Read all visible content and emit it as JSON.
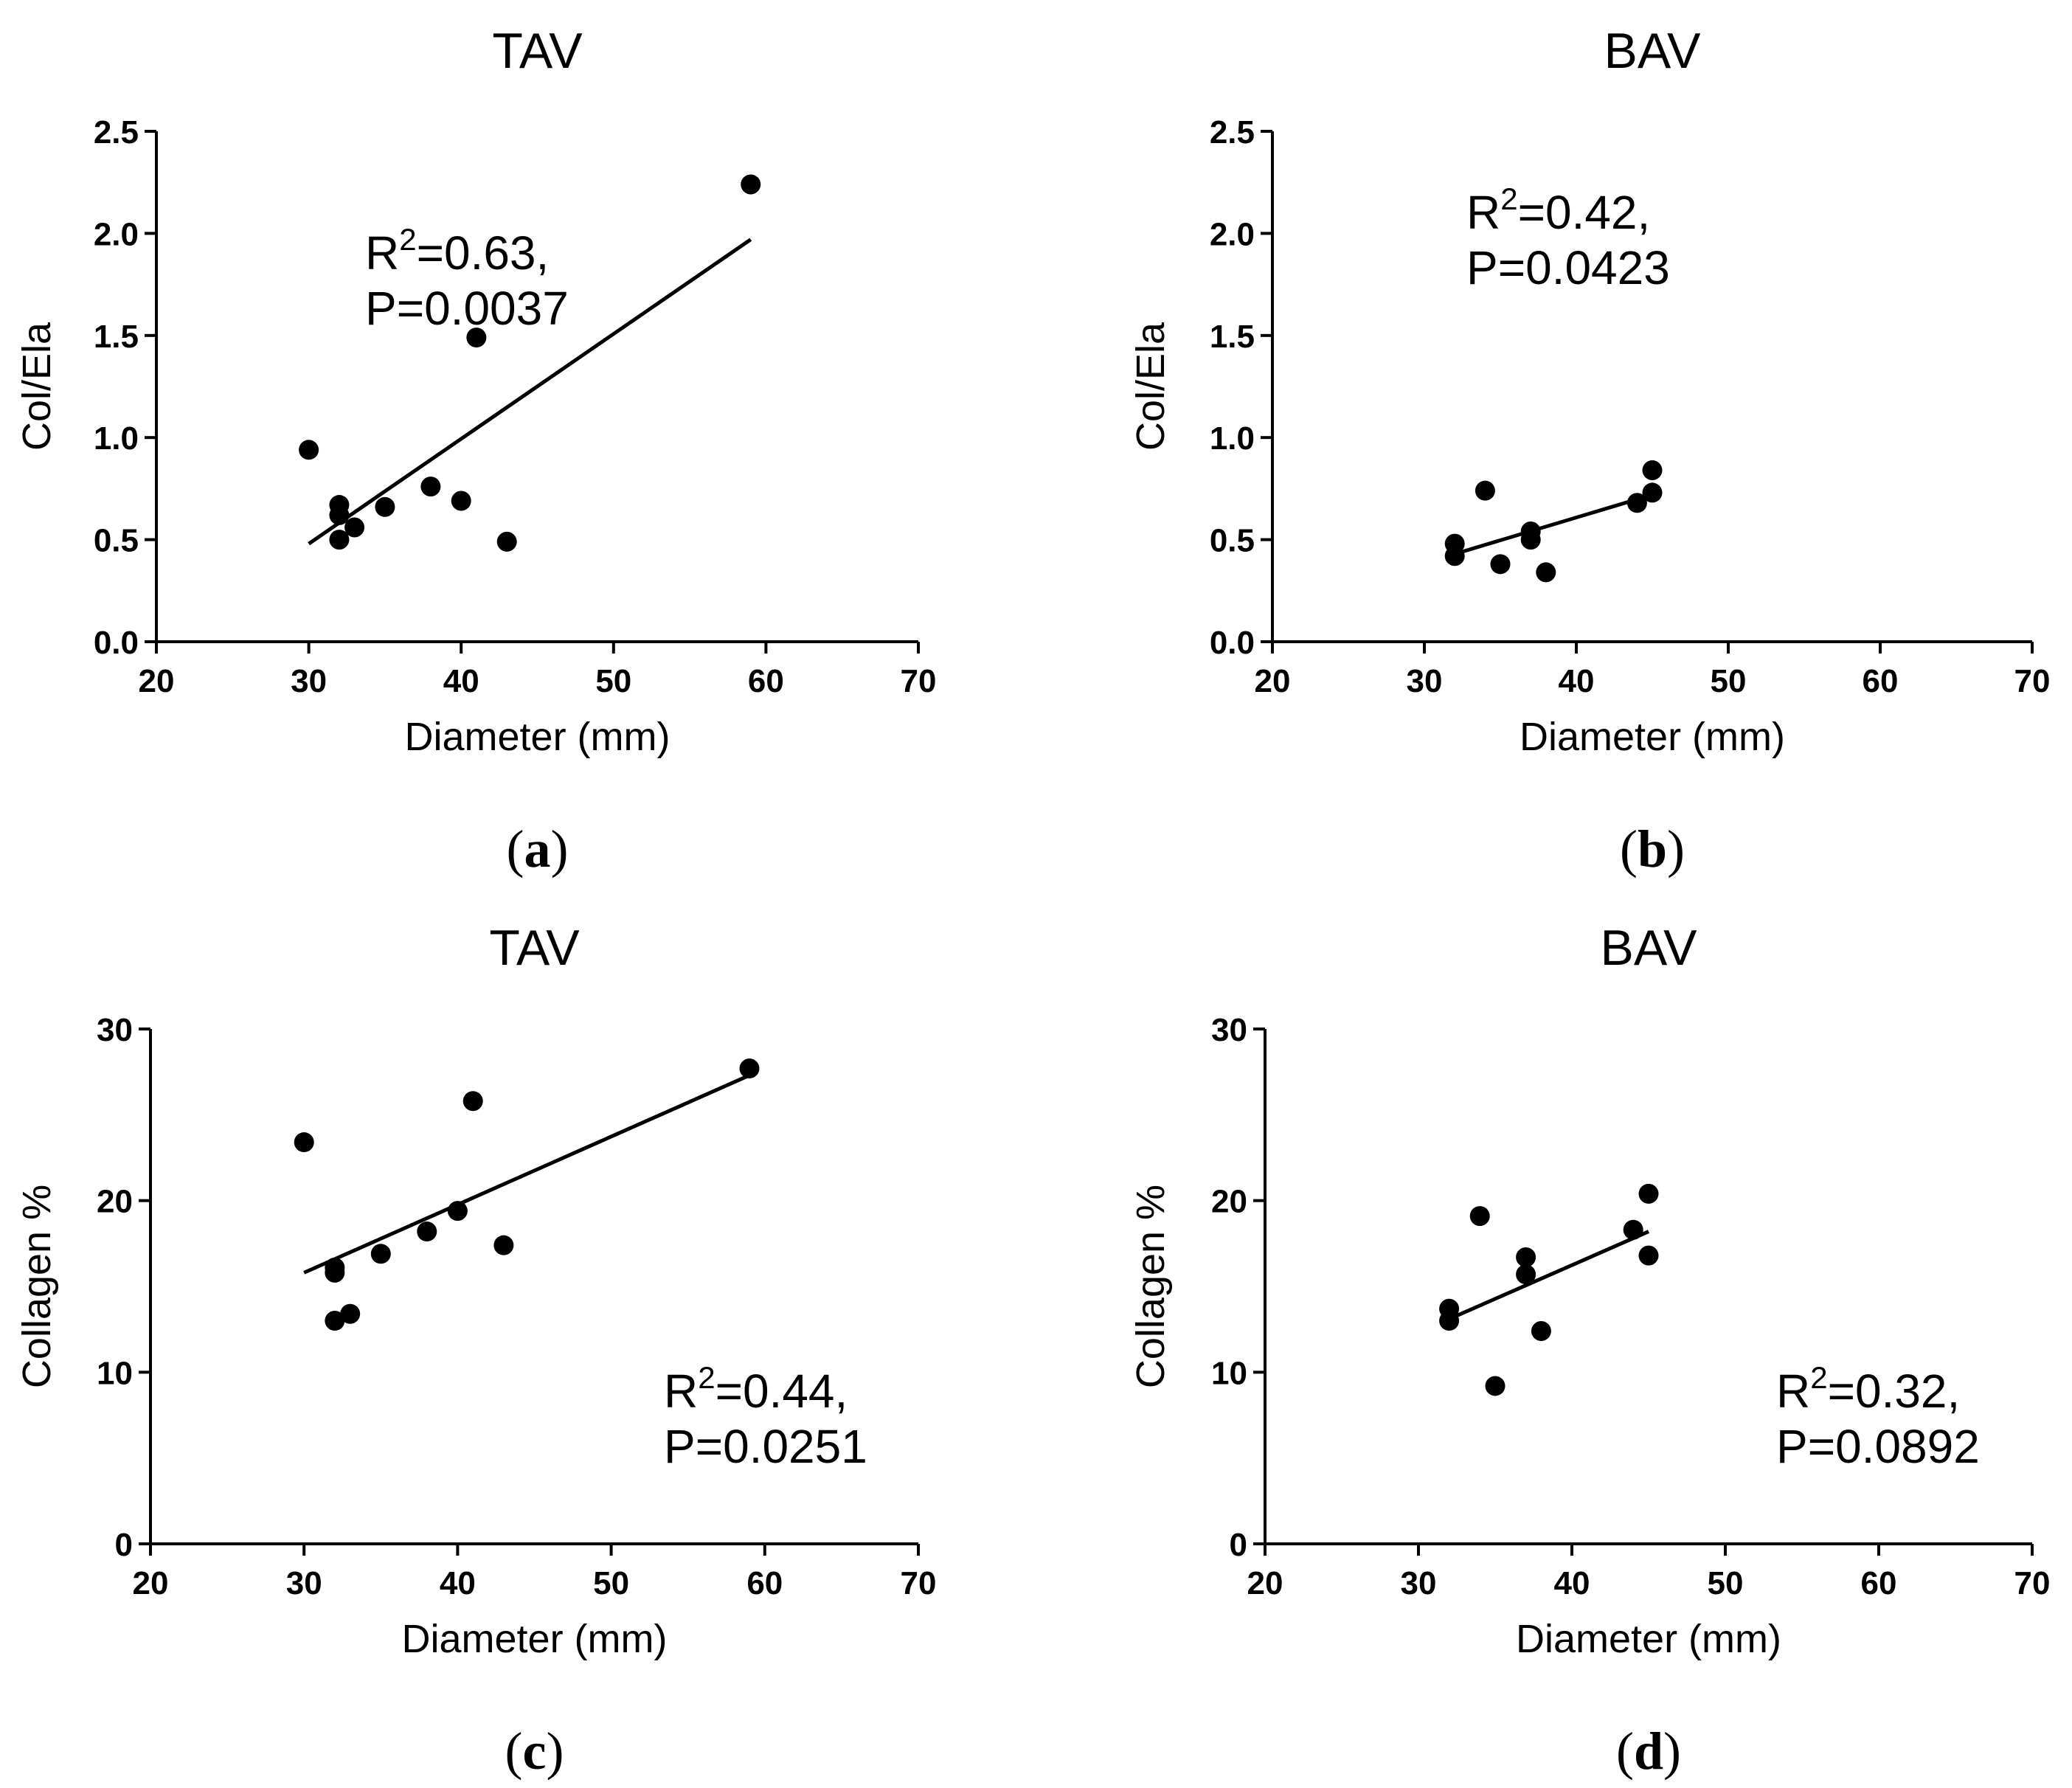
{
  "figure": {
    "background": "#ffffff",
    "ink": "#000000"
  },
  "chart_data": [
    {
      "id": "a",
      "type": "scatter",
      "panel_label": "a",
      "title": "TAV",
      "xlabel": "Diameter (mm)",
      "ylabel": "Col/Ela",
      "xlim": [
        20,
        70
      ],
      "ylim": [
        0,
        2.5
      ],
      "xticks": [
        20,
        30,
        40,
        50,
        60,
        70
      ],
      "yticks": [
        0.0,
        0.5,
        1.0,
        1.5,
        2.0,
        2.5
      ],
      "xtick_labels": [
        "20",
        "30",
        "40",
        "50",
        "60",
        "70"
      ],
      "ytick_labels": [
        "0.0",
        "0.5",
        "1.0",
        "1.5",
        "2.0",
        "2.5"
      ],
      "points": [
        {
          "x": 30,
          "y": 0.94
        },
        {
          "x": 32,
          "y": 0.67
        },
        {
          "x": 32,
          "y": 0.62
        },
        {
          "x": 32,
          "y": 0.5
        },
        {
          "x": 33,
          "y": 0.56
        },
        {
          "x": 35,
          "y": 0.66
        },
        {
          "x": 38,
          "y": 0.76
        },
        {
          "x": 40,
          "y": 0.69
        },
        {
          "x": 41,
          "y": 1.49
        },
        {
          "x": 43,
          "y": 0.49
        },
        {
          "x": 59,
          "y": 2.24
        }
      ],
      "fit_line": {
        "x": [
          30,
          59
        ],
        "y": [
          0.48,
          1.97
        ]
      },
      "annotation": {
        "r2_prefix": "R",
        "r2_sup": "2",
        "r2_value": "=0.63,",
        "p_text": "P=0.0037",
        "placement": "upper-middle"
      }
    },
    {
      "id": "b",
      "type": "scatter",
      "panel_label": "b",
      "title": "BAV",
      "xlabel": "Diameter (mm)",
      "ylabel": "Col/Ela",
      "xlim": [
        20,
        70
      ],
      "ylim": [
        0,
        2.5
      ],
      "xticks": [
        20,
        30,
        40,
        50,
        60,
        70
      ],
      "yticks": [
        0.0,
        0.5,
        1.0,
        1.5,
        2.0,
        2.5
      ],
      "xtick_labels": [
        "20",
        "30",
        "40",
        "50",
        "60",
        "70"
      ],
      "ytick_labels": [
        "0.0",
        "0.5",
        "1.0",
        "1.5",
        "2.0",
        "2.5"
      ],
      "points": [
        {
          "x": 32,
          "y": 0.48
        },
        {
          "x": 32,
          "y": 0.42
        },
        {
          "x": 34,
          "y": 0.74
        },
        {
          "x": 35,
          "y": 0.38
        },
        {
          "x": 37,
          "y": 0.54
        },
        {
          "x": 37,
          "y": 0.5
        },
        {
          "x": 38,
          "y": 0.34
        },
        {
          "x": 44,
          "y": 0.68
        },
        {
          "x": 45,
          "y": 0.84
        },
        {
          "x": 45,
          "y": 0.73
        }
      ],
      "fit_line": {
        "x": [
          32,
          45
        ],
        "y": [
          0.43,
          0.72
        ]
      },
      "annotation": {
        "r2_prefix": "R",
        "r2_sup": "2",
        "r2_value": "=0.42,",
        "p_text": "P=0.0423",
        "placement": "upper-left"
      }
    },
    {
      "id": "c",
      "type": "scatter",
      "panel_label": "c",
      "title": "TAV",
      "xlabel": "Diameter (mm)",
      "ylabel": "Collagen %",
      "xlim": [
        20,
        70
      ],
      "ylim": [
        0,
        30
      ],
      "xticks": [
        20,
        30,
        40,
        50,
        60,
        70
      ],
      "yticks": [
        0,
        10,
        20,
        30
      ],
      "xtick_labels": [
        "20",
        "30",
        "40",
        "50",
        "60",
        "70"
      ],
      "ytick_labels": [
        "0",
        "10",
        "20",
        "30"
      ],
      "points": [
        {
          "x": 30,
          "y": 23.4
        },
        {
          "x": 32,
          "y": 16.1
        },
        {
          "x": 32,
          "y": 15.8
        },
        {
          "x": 32,
          "y": 13.0
        },
        {
          "x": 33,
          "y": 13.4
        },
        {
          "x": 35,
          "y": 16.9
        },
        {
          "x": 38,
          "y": 18.2
        },
        {
          "x": 40,
          "y": 19.4
        },
        {
          "x": 41,
          "y": 25.8
        },
        {
          "x": 43,
          "y": 17.4
        },
        {
          "x": 59,
          "y": 27.7
        }
      ],
      "fit_line": {
        "x": [
          30,
          59
        ],
        "y": [
          15.8,
          27.3
        ]
      },
      "annotation": {
        "r2_prefix": "R",
        "r2_sup": "2",
        "r2_value": "=0.44,",
        "p_text": "P=0.0251",
        "placement": "lower-right"
      }
    },
    {
      "id": "d",
      "type": "scatter",
      "panel_label": "d",
      "title": "BAV",
      "xlabel": "Diameter (mm)",
      "ylabel": "Collagen %",
      "xlim": [
        20,
        70
      ],
      "ylim": [
        0,
        30
      ],
      "xticks": [
        20,
        30,
        40,
        50,
        60,
        70
      ],
      "yticks": [
        0,
        10,
        20,
        30
      ],
      "xtick_labels": [
        "20",
        "30",
        "40",
        "50",
        "60",
        "70"
      ],
      "ytick_labels": [
        "0",
        "10",
        "20",
        "30"
      ],
      "points": [
        {
          "x": 32,
          "y": 13.7
        },
        {
          "x": 32,
          "y": 13.0
        },
        {
          "x": 34,
          "y": 19.1
        },
        {
          "x": 35,
          "y": 9.2
        },
        {
          "x": 37,
          "y": 16.7
        },
        {
          "x": 37,
          "y": 15.7
        },
        {
          "x": 38,
          "y": 12.4
        },
        {
          "x": 44,
          "y": 18.3
        },
        {
          "x": 45,
          "y": 20.4
        },
        {
          "x": 45,
          "y": 16.8
        }
      ],
      "fit_line": {
        "x": [
          32,
          45
        ],
        "y": [
          13.1,
          18.2
        ]
      },
      "annotation": {
        "r2_prefix": "R",
        "r2_sup": "2",
        "r2_value": "=0.32,",
        "p_text": "P=0.0892",
        "placement": "lower-right"
      }
    }
  ]
}
